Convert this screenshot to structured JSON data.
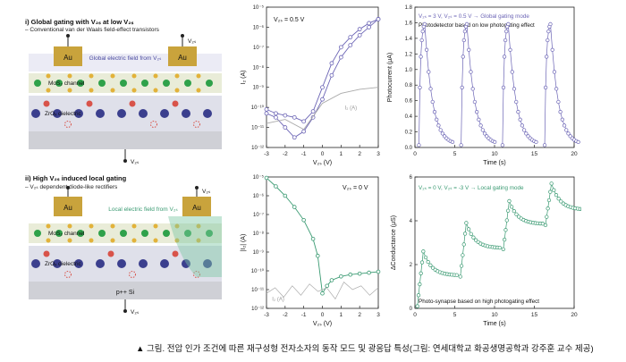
{
  "left": {
    "top": {
      "heading": "i) Global gating with V₂ₛ at low V₂ₛ",
      "subheading": "– Conventional van der Waals field-effect transistors",
      "field_label": "Global electric field from V₂ₛ",
      "electrode_left": "Au",
      "electrode_right": "Au",
      "vds_label": "V₂ₛ",
      "channel_label": "MoS₂ channel",
      "dielectric_label": "ZrOₓ dielectric",
      "vgs_label": "V₂ₛ"
    },
    "bottom": {
      "heading": "ii) High V₂ₛ induced local gating",
      "subheading": "– V₂ₛ dependent diode-like rectifiers",
      "field_label": "Local electric field from V₂ₛ",
      "electrode_left": "Au",
      "electrode_right": "Au",
      "vds_label": "V₂ₛ",
      "channel_label": "MoS₂ channel",
      "dielectric_label": "ZrOₓ dielectric",
      "substrate_label": "p++ Si",
      "vgs_label": "V₂ₛ"
    }
  },
  "chart_data": [
    {
      "type": "line",
      "panel": "transfer-top",
      "annotation": "V₂ₛ = 0.5 V",
      "xlabel": "V₂ₛ (V)",
      "ylabel": "I₂ (A)",
      "xlim": [
        -3,
        3
      ],
      "ylim_exp": [
        -12,
        -5
      ],
      "xticks": [
        "-3",
        "-2",
        "-1",
        "0",
        "1",
        "2",
        "3"
      ],
      "yticks": [
        "10⁻¹²",
        "10⁻¹¹",
        "10⁻¹⁰",
        "10⁻⁹",
        "10⁻⁸",
        "10⁻⁷",
        "10⁻⁶",
        "10⁻⁵"
      ],
      "leakage_label": "I₂ (A)",
      "series": [
        {
          "x": [
            -3,
            -2.5,
            -2,
            -1.5,
            -1,
            -0.5,
            0,
            0.5,
            1,
            1.5,
            2,
            2.5,
            3
          ],
          "log_y": [
            -10.1,
            -10.3,
            -10.4,
            -10.5,
            -10.7,
            -10.2,
            -9.0,
            -7.8,
            -7.0,
            -6.5,
            -6.1,
            -5.8,
            -5.6
          ]
        },
        {
          "x": [
            -3,
            -2.5,
            -2,
            -1.5,
            -1,
            -0.5,
            0,
            0.5,
            1,
            1.5,
            2,
            2.5,
            3
          ],
          "log_y": [
            -10.3,
            -10.5,
            -11.0,
            -11.5,
            -11.2,
            -10.5,
            -9.6,
            -8.4,
            -7.5,
            -6.9,
            -6.4,
            -6.0,
            -5.6
          ]
        },
        {
          "x": [
            -3,
            -2,
            -1,
            0,
            1,
            2,
            3
          ],
          "log_y": [
            -10.8,
            -10.6,
            -11.1,
            -9.8,
            -9.3,
            -9.1,
            -9.0
          ]
        }
      ]
    },
    {
      "type": "scatter",
      "panel": "photocurrent",
      "annotation_line1": "V₂ₛ = 3 V, V₂ₛ = 0.5 V → Global gating mode",
      "annotation_line2": "Photodetector based on low photogating effect",
      "xlabel": "Time (s)",
      "ylabel": "Photocurrent (μA)",
      "xlim": [
        0,
        20
      ],
      "ylim": [
        0,
        1.8
      ],
      "xticks": [
        "0",
        "5",
        "10",
        "15",
        "20"
      ],
      "yticks": [
        "0.0",
        "0.2",
        "0.4",
        "0.6",
        "0.8",
        "1.0",
        "1.2",
        "1.4",
        "1.6",
        "1.8"
      ],
      "pulse_starts": [
        0.5,
        5.8,
        11.0,
        16.3
      ],
      "peak": 1.62,
      "floor": 0.03,
      "color": "#6b64b5"
    },
    {
      "type": "line",
      "panel": "transfer-bottom",
      "annotation": "V₂ₛ = 0 V",
      "xlabel": "V₂ₛ (V)",
      "ylabel": "|I₂| (A)",
      "xlim": [
        -3,
        3
      ],
      "ylim_exp": [
        -12,
        -5
      ],
      "xticks": [
        "-3",
        "-2",
        "-1",
        "0",
        "1",
        "2",
        "3"
      ],
      "yticks": [
        "10⁻¹²",
        "10⁻¹¹",
        "10⁻¹⁰",
        "10⁻⁹",
        "10⁻⁸",
        "10⁻⁷",
        "10⁻⁶",
        "10⁻⁵"
      ],
      "leakage_label": "I₂ (A)",
      "series": [
        {
          "x": [
            -3,
            -2.5,
            -2,
            -1.5,
            -1,
            -0.5,
            -0.25,
            0,
            0.25,
            0.5,
            1,
            1.5,
            2,
            2.5,
            3
          ],
          "log_y": [
            -5.05,
            -5.5,
            -6.0,
            -6.6,
            -7.3,
            -8.3,
            -9.2,
            -11.2,
            -10.8,
            -10.5,
            -10.3,
            -10.2,
            -10.15,
            -10.1,
            -10.05
          ]
        }
      ],
      "color": "#3a9a72"
    },
    {
      "type": "scatter",
      "panel": "conductance",
      "annotation": "V₂ₛ = 0 V, V₂ₛ = -3 V → Local gating mode",
      "footnote": "Photo-synapse based on high photogating effect",
      "xlabel": "Time (s)",
      "ylabel": "ΔConductance (μS)",
      "xlim": [
        0,
        20
      ],
      "ylim": [
        0,
        6
      ],
      "xticks": [
        "0",
        "5",
        "10",
        "15",
        "20"
      ],
      "yticks": [
        "0",
        "2",
        "4",
        "6"
      ],
      "pulse_starts": [
        0.3,
        5.7,
        11.1,
        16.4
      ],
      "peaks": [
        2.6,
        3.9,
        4.9,
        5.7
      ],
      "bases": [
        0.1,
        1.45,
        2.7,
        3.8
      ],
      "ends": [
        1.5,
        2.75,
        3.85,
        4.5
      ],
      "color": "#3a9a72"
    }
  ],
  "caption": "▲ 그림. 전압 인가 조건에 따른 재구성형 전자소자의 동작 모드 및 광응답 특성(그림: 연세대학교 화공생명공학과 강주훈 교수 제공)"
}
